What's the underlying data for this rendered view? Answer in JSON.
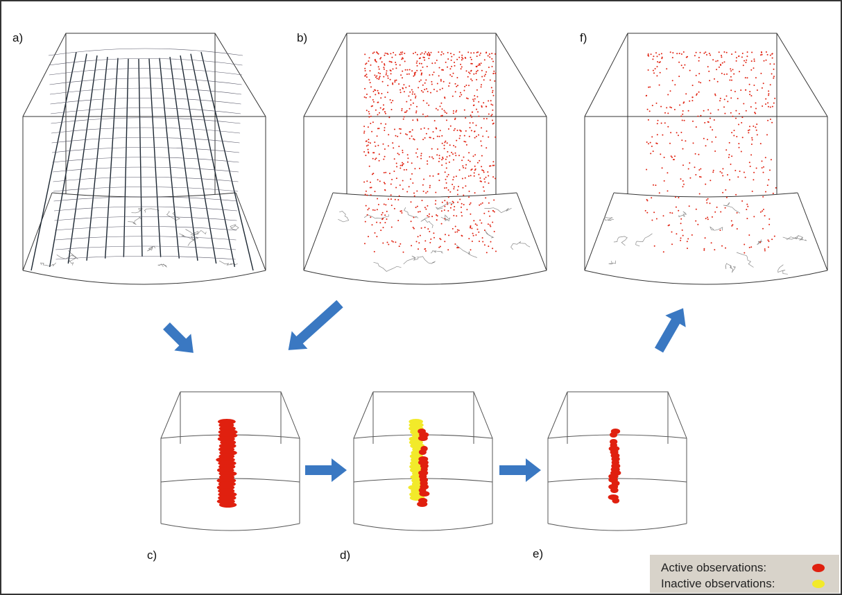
{
  "panels": [
    {
      "label": "a)"
    },
    {
      "label": "b)"
    },
    {
      "label": "f)"
    },
    {
      "label": "c)"
    },
    {
      "label": "d)"
    },
    {
      "label": "e)"
    }
  ],
  "legend": {
    "items": [
      {
        "label": "Active observations:",
        "color": "#e0200f"
      },
      {
        "label": "Inactive observations:",
        "color": "#f2ea2a"
      }
    ]
  }
}
